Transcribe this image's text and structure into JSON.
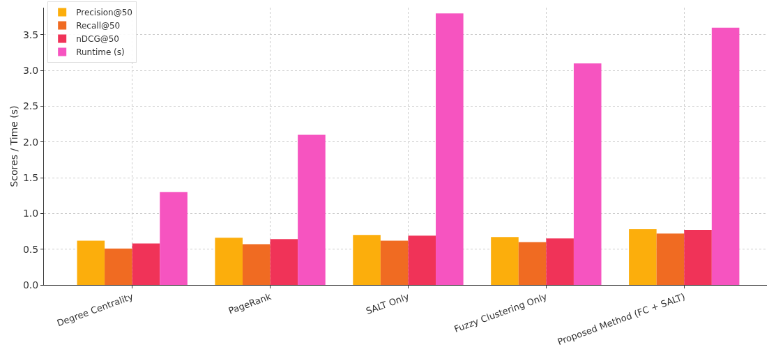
{
  "chart_data": {
    "type": "bar",
    "ylabel": "Scores / Time (s)",
    "categories": [
      "Degree Centrality",
      "PageRank",
      "SALT Only",
      "Fuzzy Clustering Only",
      "Proposed Method (FC + SALT)"
    ],
    "series": [
      {
        "name": "Precision@50",
        "color": "#fcae0c",
        "values": [
          0.62,
          0.66,
          0.7,
          0.67,
          0.78
        ]
      },
      {
        "name": "Recall@50",
        "color": "#f06b22",
        "values": [
          0.51,
          0.57,
          0.62,
          0.6,
          0.72
        ]
      },
      {
        "name": "nDCG@50",
        "color": "#f03358",
        "values": [
          0.58,
          0.64,
          0.69,
          0.65,
          0.77
        ]
      },
      {
        "name": "Runtime (s)",
        "color": "#f654c0",
        "values": [
          1.3,
          2.1,
          3.8,
          3.1,
          3.6
        ]
      }
    ],
    "ylim": [
      0,
      3.88
    ],
    "yticks": [
      {
        "value": 0,
        "label": "0.0"
      },
      {
        "value": 0.5,
        "label": "0.5"
      },
      {
        "value": 1,
        "label": "1.0"
      },
      {
        "value": 1.5,
        "label": "1.5"
      },
      {
        "value": 2,
        "label": "2.0"
      },
      {
        "value": 2.5,
        "label": "2.5"
      },
      {
        "value": 3,
        "label": "3.0"
      },
      {
        "value": 3.5,
        "label": "3.5"
      }
    ],
    "grid": true,
    "legend": "top left"
  }
}
